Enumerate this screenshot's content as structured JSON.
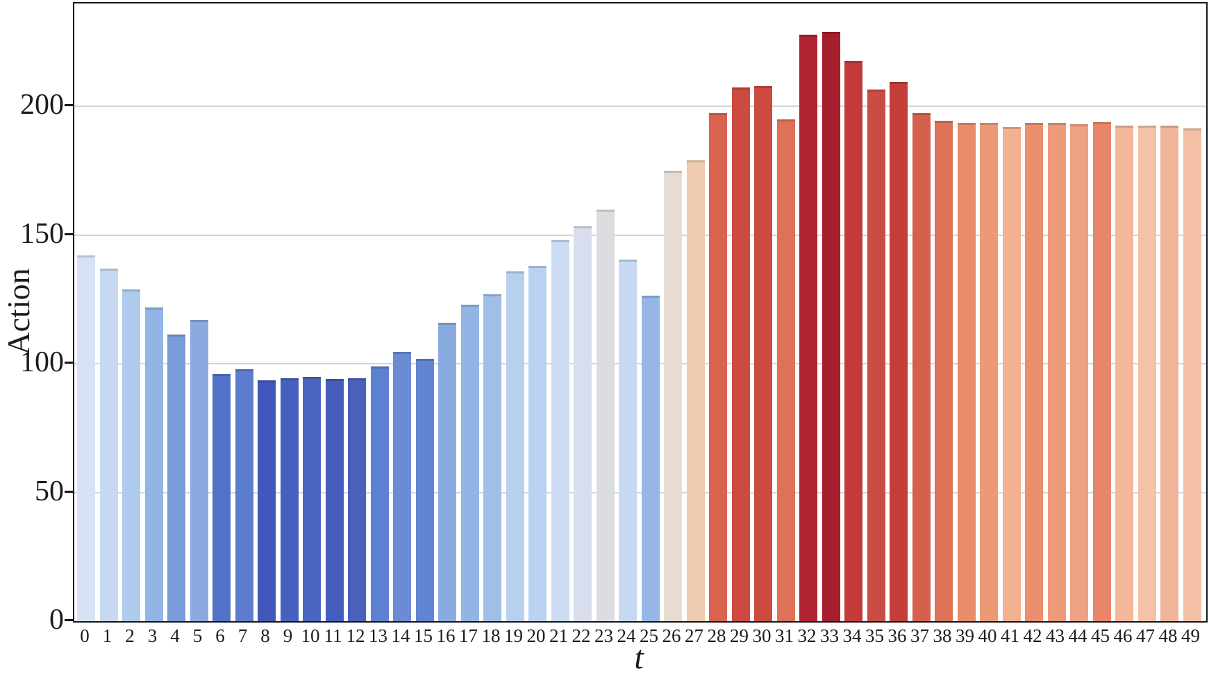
{
  "chart_data": {
    "type": "bar",
    "title": "",
    "xlabel": "t",
    "ylabel": "Action",
    "x": [
      "0",
      "1",
      "2",
      "3",
      "4",
      "5",
      "6",
      "7",
      "8",
      "9",
      "10",
      "11",
      "12",
      "13",
      "14",
      "15",
      "16",
      "17",
      "18",
      "19",
      "20",
      "21",
      "22",
      "23",
      "24",
      "25",
      "26",
      "27",
      "28",
      "29",
      "30",
      "31",
      "32",
      "33",
      "34",
      "35",
      "36",
      "37",
      "38",
      "39",
      "40",
      "41",
      "42",
      "43",
      "44",
      "45",
      "46",
      "47",
      "48",
      "49"
    ],
    "values": [
      142,
      137,
      129,
      122,
      111.5,
      117,
      96,
      98,
      93.5,
      94.5,
      95,
      94,
      94.5,
      99,
      104.5,
      102,
      116,
      123,
      127,
      136,
      138,
      148,
      153.5,
      160,
      140.5,
      126.5,
      175,
      179,
      197.5,
      207.5,
      208,
      195,
      228,
      229,
      217.5,
      206.5,
      209.5,
      197.5,
      194.5,
      193.5,
      193.5,
      192,
      193.5,
      193.5,
      193,
      194,
      192.5,
      192.5,
      192.5,
      191.5
    ],
    "bar_colors": [
      "#D7E3F4",
      "#C6D9F1",
      "#AECBEE",
      "#92B5E5",
      "#7A9BDA",
      "#8CA9DF",
      "#5272C8",
      "#5C7DCE",
      "#4157B9",
      "#4660BE",
      "#4B66C1",
      "#445CBB",
      "#4960BD",
      "#5E80D0",
      "#6B8BD5",
      "#6285D2",
      "#89ABE0",
      "#93B5E5",
      "#9FBEE8",
      "#B7D0EE",
      "#BAD2EF",
      "#CBDCF3",
      "#D8DEED",
      "#DCDDE0",
      "#C6D9F1",
      "#96B7E5",
      "#E8DCD2",
      "#EFCBB2",
      "#D96350",
      "#CC4A41",
      "#CC4B41",
      "#DE7158",
      "#B02431",
      "#A61E2B",
      "#C23B38",
      "#C94D43",
      "#C33D39",
      "#D5604C",
      "#DD7257",
      "#E88C69",
      "#EC9A76",
      "#F2B191",
      "#E98F6D",
      "#EC9B78",
      "#EFA183",
      "#E8866A",
      "#F4B79A",
      "#F5C1A8",
      "#F1B399",
      "#F4C0A6"
    ],
    "colormap": "coolwarm",
    "ylim": [
      0,
      240
    ],
    "yticks": [
      0,
      50,
      100,
      150,
      200
    ],
    "grid": "horizontal",
    "gridline_color": "#cfd7de",
    "spine_color": "#15151a",
    "background_color": "#ffffff",
    "legend": "none"
  }
}
